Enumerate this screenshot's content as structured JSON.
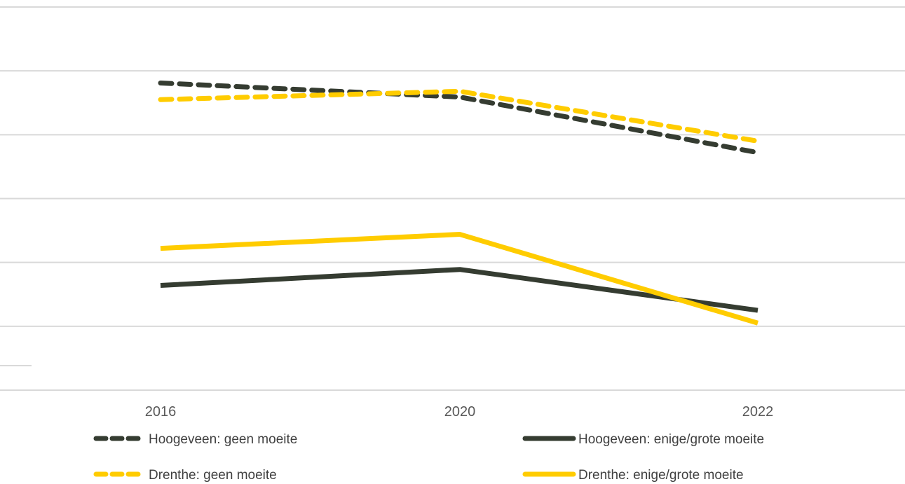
{
  "chart_data": {
    "type": "line",
    "title": "",
    "xlabel": "",
    "ylabel": "",
    "categories": [
      "2016",
      "2020",
      "2022"
    ],
    "ylim": [
      0,
      6
    ],
    "grid": true,
    "legend_position": "bottom",
    "series": [
      {
        "name": "Hoogeveen: geen moeite",
        "values": [
          4.81,
          4.59,
          3.72
        ],
        "color": "#353c31",
        "style": "dashed"
      },
      {
        "name": "Hoogeveen: enige/grote moeite",
        "values": [
          1.64,
          1.89,
          1.25
        ],
        "color": "#353c31",
        "style": "solid"
      },
      {
        "name": "Drenthe: geen moeite",
        "values": [
          4.55,
          4.68,
          3.9
        ],
        "color": "#ffcc00",
        "style": "dashed"
      },
      {
        "name": "Drenthe: enige/grote moeite",
        "values": [
          2.22,
          2.44,
          1.05
        ],
        "color": "#ffcc00",
        "style": "solid"
      }
    ]
  }
}
